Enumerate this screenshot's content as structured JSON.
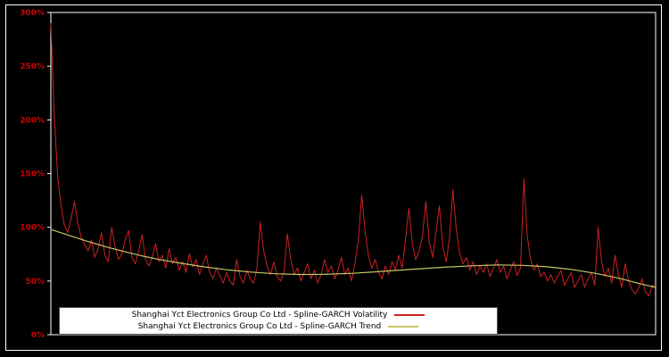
{
  "figure": {
    "background_color": "#000000",
    "border_color": "#ffffff"
  },
  "axes": {
    "spine_color": "#ffffff",
    "tick_label_color": "#cc0000"
  },
  "chart_data": {
    "type": "line",
    "title": "",
    "xlabel": "",
    "ylabel": "",
    "ylim": [
      0,
      300
    ],
    "yticks": [
      0,
      50,
      100,
      150,
      200,
      250,
      300
    ],
    "ytick_labels": [
      "0%",
      "50%",
      "100%",
      "150%",
      "200%",
      "250%",
      "300%"
    ],
    "x_tick_labels": [],
    "grid": false,
    "legend_position": "lower center",
    "series": [
      {
        "name": "Shanghai Yct Electronics Group Co Ltd - Spline-GARCH Volatility",
        "data_name": "volatility-line",
        "color": "#cc2222",
        "stroke_width": 1,
        "y": [
          290,
          205,
          148,
          120,
          102,
          95,
          108,
          124,
          104,
          90,
          84,
          78,
          88,
          72,
          80,
          95,
          74,
          68,
          100,
          82,
          70,
          75,
          88,
          97,
          72,
          66,
          78,
          93,
          70,
          64,
          72,
          85,
          68,
          74,
          62,
          80,
          66,
          72,
          60,
          68,
          58,
          75,
          63,
          70,
          56,
          66,
          74,
          58,
          52,
          62,
          55,
          48,
          58,
          50,
          46,
          70,
          54,
          48,
          60,
          52,
          48,
          62,
          105,
          78,
          64,
          56,
          68,
          54,
          50,
          58,
          94,
          70,
          56,
          62,
          50,
          58,
          66,
          52,
          60,
          48,
          56,
          70,
          58,
          64,
          52,
          60,
          72,
          56,
          62,
          50,
          66,
          88,
          130,
          96,
          74,
          62,
          70,
          58,
          52,
          64,
          56,
          68,
          60,
          74,
          62,
          90,
          118,
          84,
          70,
          78,
          92,
          124,
          86,
          72,
          96,
          120,
          82,
          68,
          90,
          135,
          98,
          76,
          66,
          72,
          60,
          68,
          56,
          64,
          58,
          66,
          54,
          62,
          70,
          58,
          64,
          52,
          60,
          68,
          55,
          62,
          145,
          92,
          70,
          60,
          66,
          54,
          58,
          50,
          56,
          48,
          54,
          60,
          46,
          52,
          58,
          44,
          50,
          56,
          44,
          52,
          58,
          46,
          100,
          68,
          54,
          62,
          48,
          74,
          56,
          44,
          66,
          50,
          42,
          38,
          44,
          52,
          40,
          36,
          46,
          44
        ]
      },
      {
        "name": "Shanghai Yct Electronics Group Co Ltd - Spline-GARCH Trend",
        "data_name": "trend-line",
        "color": "#c5c565",
        "stroke_width": 1.2,
        "x": [
          0.0,
          0.03,
          0.06,
          0.09,
          0.12,
          0.15,
          0.18,
          0.21,
          0.25,
          0.29,
          0.33,
          0.37,
          0.41,
          0.45,
          0.5,
          0.55,
          0.6,
          0.65,
          0.7,
          0.74,
          0.78,
          0.82,
          0.86,
          0.9,
          0.94,
          0.97,
          1.0
        ],
        "y": [
          98,
          92.5,
          87,
          82,
          77.5,
          73.5,
          70,
          67,
          63.5,
          60.5,
          58.3,
          56.8,
          56.1,
          56.2,
          57.2,
          59,
          61,
          62.8,
          64.2,
          65,
          64.6,
          63.2,
          60.8,
          57.2,
          52.5,
          48,
          44
        ]
      }
    ]
  }
}
